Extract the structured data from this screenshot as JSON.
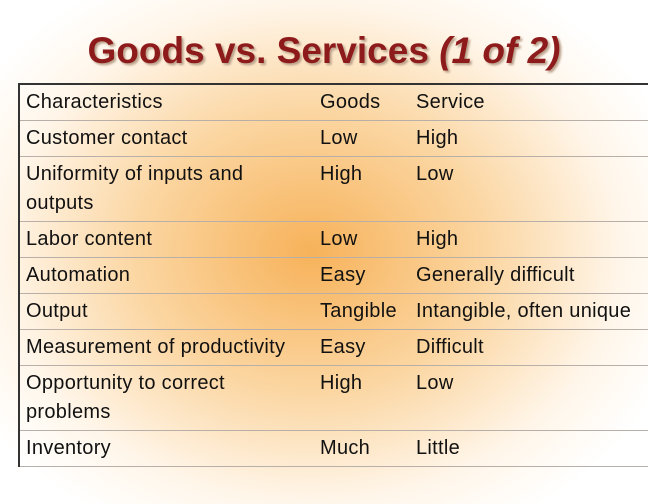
{
  "title": {
    "main": "Goods vs. Services",
    "part": "(1 of 2)"
  },
  "table": {
    "header": [
      "Characteristics",
      "Goods",
      "Service"
    ],
    "rows": [
      [
        "Customer contact",
        "Low",
        "High"
      ],
      [
        "Uniformity of inputs and outputs",
        "High",
        "Low"
      ],
      [
        "Labor content",
        "Low",
        "High"
      ],
      [
        "Automation",
        "Easy",
        "Generally difficult"
      ],
      [
        "Output",
        "Tangible",
        "Intangible, often unique"
      ],
      [
        "Measurement of productivity",
        "Easy",
        "Difficult"
      ],
      [
        "Opportunity to correct problems",
        "High",
        "Low"
      ],
      [
        "Inventory",
        "Much",
        "Little"
      ]
    ]
  }
}
